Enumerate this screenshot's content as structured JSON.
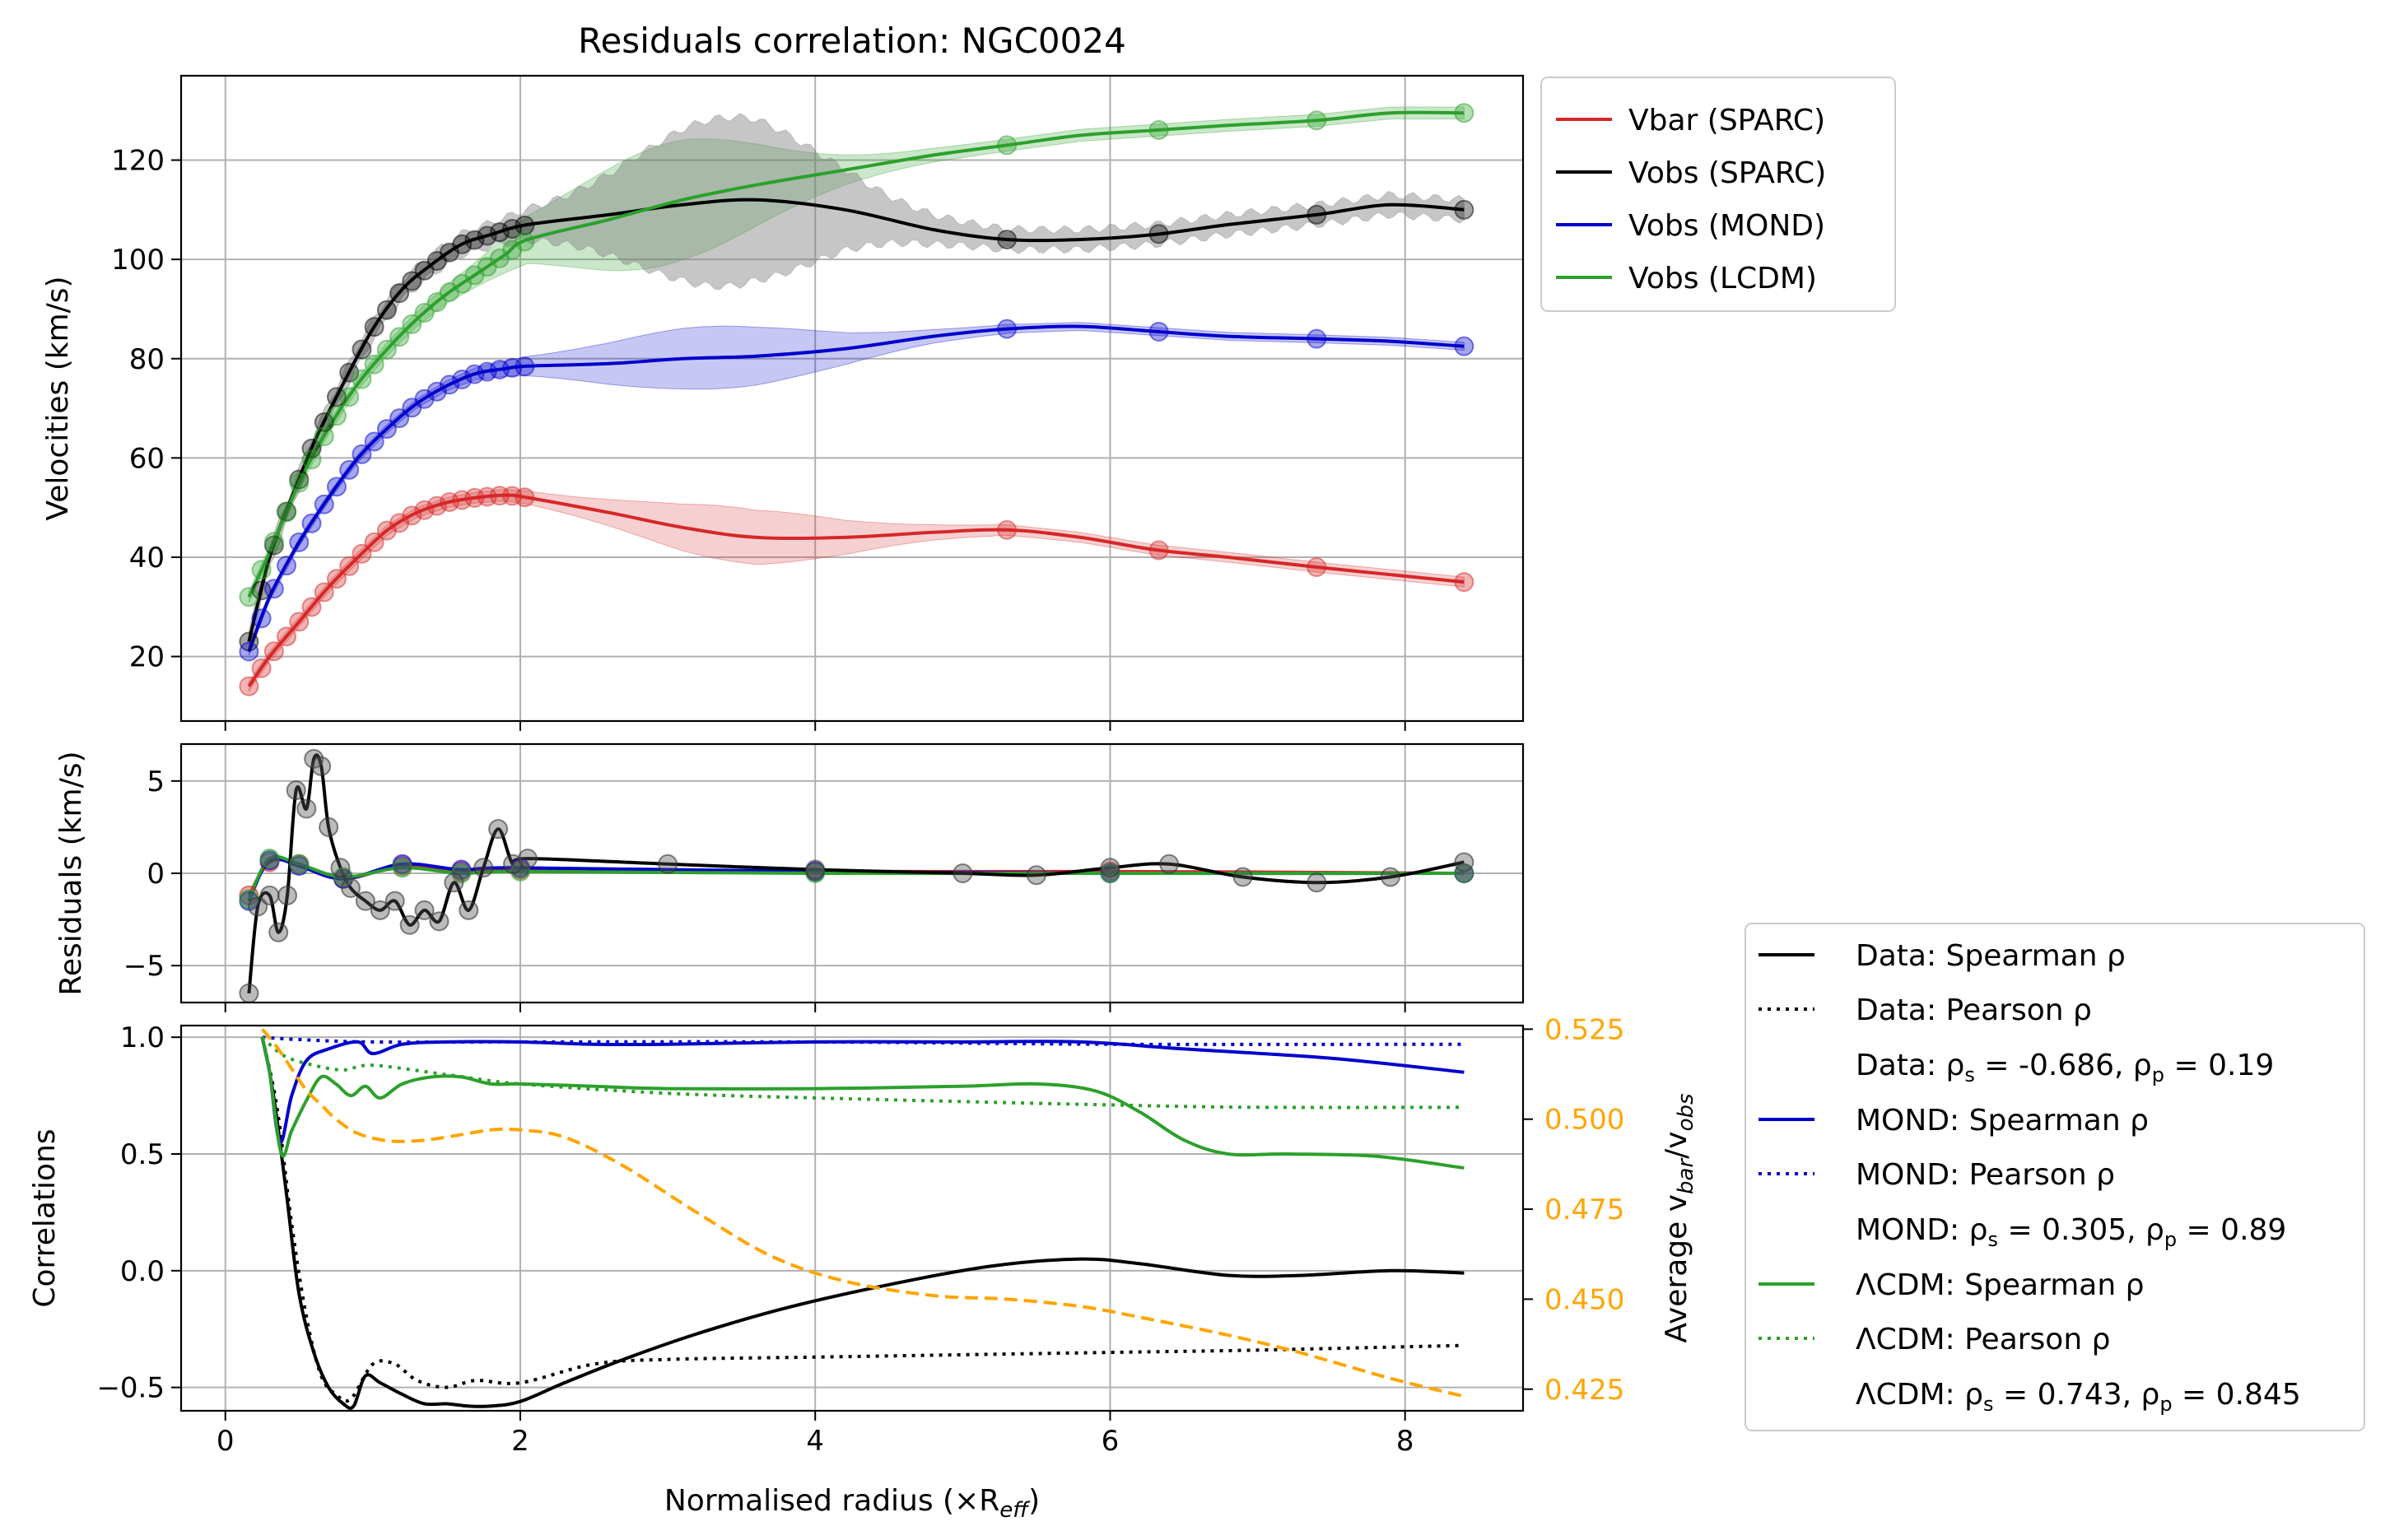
{
  "chart_data": [
    {
      "type": "line",
      "title": "Residuals correlation: NGC0024",
      "ylabel": "Velocities (km/s)",
      "xlim": [
        -0.3,
        8.8
      ],
      "ylim": [
        7,
        137
      ],
      "xticks": [
        "0",
        "2",
        "4",
        "6",
        "8"
      ],
      "yticks": [
        "20",
        "40",
        "60",
        "80",
        "100",
        "120"
      ],
      "grid": true,
      "legend_position": "outside-right-top",
      "series": [
        {
          "name": "Vbar (SPARC)",
          "color": "#d62728",
          "x": [
            0.16,
            0.3,
            0.5,
            0.7,
            0.9,
            1.1,
            1.3,
            1.5,
            1.7,
            1.9,
            2.05,
            2.6,
            3.1,
            3.6,
            4.2,
            4.8,
            5.3,
            5.8,
            6.3,
            6.8,
            7.4,
            7.9,
            8.4
          ],
          "values": [
            14,
            20,
            27,
            34,
            40,
            45.5,
            49,
            51,
            52,
            52.5,
            52,
            49,
            46,
            44,
            44,
            45,
            45.5,
            44,
            41.5,
            40,
            38,
            36.5,
            35
          ]
        },
        {
          "name": "Vobs (SPARC)",
          "color": "#000000",
          "x": [
            0.16,
            0.3,
            0.45,
            0.6,
            0.8,
            1.0,
            1.2,
            1.4,
            1.6,
            1.8,
            2.05,
            2.6,
            3.1,
            3.6,
            4.2,
            4.8,
            5.3,
            5.8,
            6.3,
            6.8,
            7.4,
            7.9,
            8.4
          ],
          "values": [
            23,
            40,
            52,
            63,
            75,
            86,
            94,
            99,
            103,
            105,
            107,
            109,
            111,
            112,
            110,
            106,
            104,
            104,
            105,
            107,
            109,
            111,
            110
          ]
        },
        {
          "name": "Vobs (MOND)",
          "color": "#0000cd",
          "x": [
            0.16,
            0.3,
            0.5,
            0.7,
            0.9,
            1.1,
            1.3,
            1.5,
            1.7,
            1.9,
            2.05,
            2.6,
            3.1,
            3.6,
            4.2,
            4.8,
            5.3,
            5.8,
            6.3,
            6.8,
            7.4,
            7.9,
            8.4
          ],
          "values": [
            21,
            32,
            43,
            52,
            60,
            66,
            71,
            74.5,
            77,
            78,
            78.5,
            79,
            80,
            80.5,
            82,
            84.5,
            86,
            86.5,
            85.5,
            84.5,
            84,
            83.5,
            82.5
          ]
        },
        {
          "name": "Vobs (LCDM)",
          "color": "#2ca02c",
          "x": [
            0.16,
            0.3,
            0.5,
            0.7,
            0.9,
            1.1,
            1.3,
            1.5,
            1.7,
            1.9,
            2.05,
            2.6,
            3.1,
            3.6,
            4.2,
            4.8,
            5.3,
            5.8,
            6.3,
            6.8,
            7.4,
            7.9,
            8.4
          ],
          "values": [
            32,
            41,
            55,
            66,
            75,
            82,
            88,
            93,
            97,
            101,
            104,
            108,
            112,
            115,
            118,
            121,
            123,
            125,
            126,
            127,
            128,
            129.5,
            129.5
          ]
        }
      ]
    },
    {
      "type": "line",
      "ylabel": "Residuals (km/s)",
      "xlim": [
        -0.3,
        8.8
      ],
      "ylim": [
        -7,
        7
      ],
      "yticks": [
        "−5",
        "0",
        "5"
      ],
      "grid": true,
      "series": [
        {
          "name": "Vbar (SPARC)",
          "color": "#d62728",
          "x": [
            0.16,
            0.3,
            0.5,
            0.8,
            1.2,
            1.6,
            2.0,
            4.0,
            6.0,
            8.4
          ],
          "values": [
            -1.2,
            0.6,
            0.5,
            -0.3,
            0.4,
            0.1,
            0.2,
            0.1,
            0.1,
            0.0
          ]
        },
        {
          "name": "Vobs (SPARC)",
          "color": "#000000",
          "x": [
            0.16,
            0.22,
            0.3,
            0.36,
            0.42,
            0.48,
            0.55,
            0.6,
            0.65,
            0.7,
            0.78,
            0.85,
            0.95,
            1.05,
            1.15,
            1.25,
            1.35,
            1.45,
            1.55,
            1.65,
            1.75,
            1.85,
            1.95,
            2.05,
            3.0,
            4.0,
            5.0,
            5.5,
            6.0,
            6.4,
            6.9,
            7.4,
            7.9,
            8.4
          ],
          "values": [
            -6.5,
            -1.8,
            -1.2,
            -3.2,
            -1.2,
            4.5,
            3.5,
            6.2,
            5.8,
            2.5,
            0.3,
            -0.8,
            -1.5,
            -2.0,
            -1.5,
            -2.8,
            -2.0,
            -2.6,
            -0.5,
            -2.0,
            0.3,
            2.4,
            0.5,
            0.8,
            0.5,
            0.2,
            0.0,
            -0.1,
            0.3,
            0.5,
            -0.2,
            -0.5,
            -0.2,
            0.6
          ]
        },
        {
          "name": "Vobs (MOND)",
          "color": "#0000cd",
          "x": [
            0.16,
            0.3,
            0.5,
            0.8,
            1.2,
            1.6,
            2.0,
            4.0,
            6.0,
            8.4
          ],
          "values": [
            -1.5,
            0.7,
            0.4,
            -0.3,
            0.5,
            0.2,
            0.3,
            0.1,
            0.0,
            0.0
          ]
        },
        {
          "name": "Vobs (LCDM)",
          "color": "#2ca02c",
          "x": [
            0.16,
            0.3,
            0.5,
            0.8,
            1.2,
            1.6,
            2.0,
            4.0,
            6.0,
            8.4
          ],
          "values": [
            -1.4,
            0.8,
            0.5,
            -0.2,
            0.3,
            0.0,
            0.1,
            0.0,
            0.0,
            0.0
          ]
        }
      ]
    },
    {
      "type": "line",
      "xlabel": "Normalised radius (×R",
      "xlabel_sub": "eff",
      "ylabel": "Correlations",
      "ylabel_right": "Average v",
      "ylabel_right_sub1": "bar",
      "ylabel_right_mid": "/v",
      "ylabel_right_sub2": "obs",
      "xlim": [
        -0.3,
        8.8
      ],
      "ylim": [
        -0.6,
        1.05
      ],
      "yticks": [
        "−0.5",
        "0.0",
        "0.5",
        "1.0"
      ],
      "ylim_right": [
        0.419,
        0.526
      ],
      "yticks_right": [
        "0.425",
        "0.450",
        "0.475",
        "0.500",
        "0.525"
      ],
      "grid": true,
      "legend_position": "outside-right-bottom",
      "series": [
        {
          "name": "Data: Spearman ρ",
          "color": "#000000",
          "style": "solid",
          "x": [
            0.25,
            0.3,
            0.35,
            0.42,
            0.5,
            0.6,
            0.7,
            0.8,
            0.87,
            0.95,
            1.05,
            1.2,
            1.35,
            1.5,
            1.65,
            1.8,
            2.0,
            2.3,
            2.7,
            3.2,
            3.8,
            4.5,
            5.2,
            5.8,
            6.2,
            6.8,
            7.3,
            7.9,
            8.4
          ],
          "values": [
            1.0,
            0.85,
            0.65,
            0.3,
            -0.1,
            -0.35,
            -0.5,
            -0.57,
            -0.58,
            -0.45,
            -0.48,
            -0.53,
            -0.57,
            -0.57,
            -0.58,
            -0.58,
            -0.56,
            -0.48,
            -0.38,
            -0.27,
            -0.16,
            -0.06,
            0.02,
            0.05,
            0.03,
            -0.02,
            -0.02,
            0.0,
            -0.01
          ]
        },
        {
          "name": "Data: Pearson ρ",
          "color": "#000000",
          "style": "dotted",
          "x": [
            0.25,
            0.35,
            0.45,
            0.55,
            0.65,
            0.75,
            0.85,
            1.0,
            1.15,
            1.3,
            1.5,
            1.7,
            2.0,
            2.5,
            3.0,
            4.0,
            5.0,
            6.0,
            7.0,
            8.4
          ],
          "values": [
            1.0,
            0.7,
            0.2,
            -0.2,
            -0.45,
            -0.53,
            -0.55,
            -0.4,
            -0.4,
            -0.47,
            -0.5,
            -0.47,
            -0.48,
            -0.4,
            -0.38,
            -0.37,
            -0.36,
            -0.35,
            -0.34,
            -0.32
          ]
        },
        {
          "name": "MOND: Spearman ρ",
          "color": "#0000cd",
          "style": "solid",
          "x": [
            0.25,
            0.3,
            0.37,
            0.45,
            0.55,
            0.7,
            0.9,
            1.0,
            1.2,
            1.5,
            2.0,
            2.5,
            3.0,
            4.0,
            5.0,
            5.8,
            6.5,
            7.5,
            8.4
          ],
          "values": [
            1.0,
            0.85,
            0.55,
            0.75,
            0.9,
            0.95,
            0.98,
            0.93,
            0.97,
            0.98,
            0.98,
            0.97,
            0.97,
            0.98,
            0.98,
            0.98,
            0.95,
            0.91,
            0.85
          ]
        },
        {
          "name": "MOND: Pearson ρ",
          "color": "#0000cd",
          "style": "dotted",
          "x": [
            0.25,
            0.5,
            1.0,
            2.0,
            4.0,
            6.0,
            8.4
          ],
          "values": [
            1.0,
            0.99,
            0.98,
            0.98,
            0.98,
            0.97,
            0.97
          ]
        },
        {
          "name": "ΛCDM: Spearman ρ",
          "color": "#2ca02c",
          "style": "solid",
          "x": [
            0.25,
            0.3,
            0.38,
            0.45,
            0.55,
            0.65,
            0.75,
            0.85,
            0.95,
            1.05,
            1.2,
            1.4,
            1.6,
            1.8,
            2.0,
            2.5,
            3.0,
            4.0,
            5.0,
            5.5,
            5.9,
            6.2,
            6.5,
            6.8,
            7.2,
            7.8,
            8.4
          ],
          "values": [
            1.0,
            0.85,
            0.5,
            0.6,
            0.73,
            0.83,
            0.8,
            0.75,
            0.79,
            0.74,
            0.8,
            0.83,
            0.83,
            0.8,
            0.8,
            0.79,
            0.78,
            0.78,
            0.79,
            0.8,
            0.77,
            0.68,
            0.56,
            0.5,
            0.5,
            0.49,
            0.44
          ]
        },
        {
          "name": "ΛCDM: Pearson ρ",
          "color": "#2ca02c",
          "style": "dotted",
          "x": [
            0.25,
            0.4,
            0.6,
            0.8,
            1.0,
            1.5,
            2.0,
            3.0,
            4.0,
            6.0,
            7.0,
            8.4
          ],
          "values": [
            1.0,
            0.92,
            0.88,
            0.86,
            0.88,
            0.84,
            0.8,
            0.76,
            0.74,
            0.71,
            0.7,
            0.7
          ]
        },
        {
          "name": "Average v_bar/v_obs",
          "color": "#ffa500",
          "style": "dashed",
          "axis": "right",
          "x": [
            0.25,
            0.35,
            0.45,
            0.55,
            0.65,
            0.75,
            0.9,
            1.1,
            1.3,
            1.5,
            1.8,
            2.0,
            2.3,
            2.7,
            3.2,
            3.7,
            4.2,
            4.8,
            5.3,
            5.8,
            6.2,
            6.8,
            7.3,
            7.9,
            8.4
          ],
          "values": [
            0.525,
            0.52,
            0.514,
            0.508,
            0.504,
            0.5,
            0.496,
            0.494,
            0.494,
            0.495,
            0.497,
            0.497,
            0.495,
            0.487,
            0.474,
            0.462,
            0.455,
            0.451,
            0.45,
            0.448,
            0.445,
            0.44,
            0.435,
            0.428,
            0.423
          ]
        }
      ],
      "annotations": [
        {
          "label": "Data",
          "rho_s": "-0.686",
          "rho_p": "0.19"
        },
        {
          "label": "MOND",
          "rho_s": "0.305",
          "rho_p": "0.89"
        },
        {
          "label": "ΛCDM",
          "rho_s": "0.743",
          "rho_p": "0.845"
        }
      ]
    }
  ]
}
